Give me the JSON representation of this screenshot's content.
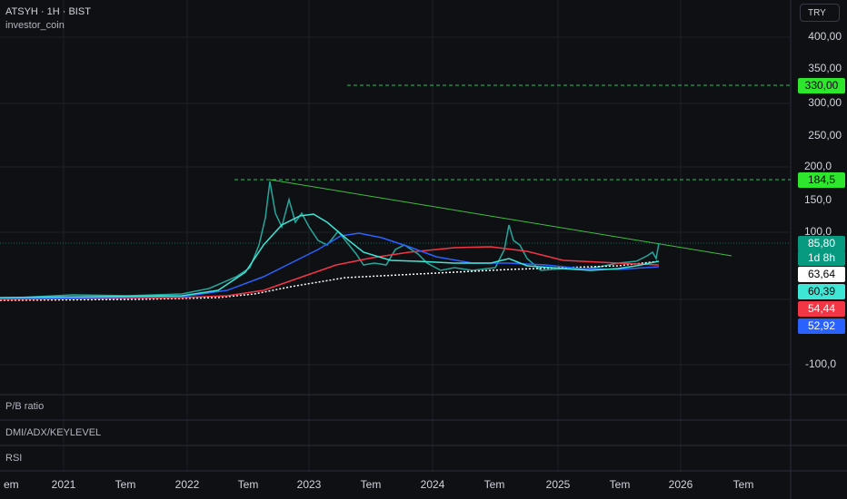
{
  "header": {
    "symbol": "ATSYH · 1H · BIST",
    "author": "investor_coin",
    "currency": "TRY"
  },
  "price_axis": {
    "labels": [
      "400,00",
      "350,00",
      "300,00",
      "250,00",
      "200,0",
      "150,0",
      "100,0",
      "-100,0"
    ]
  },
  "badges": {
    "resistance_high": "330,00",
    "resistance_peak": "184,5",
    "last_price": "85,80",
    "countdown": "1d 8h",
    "ma_white": "63,64",
    "ma_cyan": "60,39",
    "ma_red": "54,44",
    "ma_blue": "52,92"
  },
  "panes": [
    "P/B ratio",
    "DMI/ADX/KEYLEVEL",
    "RSI"
  ],
  "time_axis": {
    "labels": [
      "em",
      "2021",
      "Tem",
      "2022",
      "Tem",
      "2023",
      "Tem",
      "2024",
      "Tem",
      "2025",
      "Tem",
      "2026",
      "Tem"
    ]
  }
}
